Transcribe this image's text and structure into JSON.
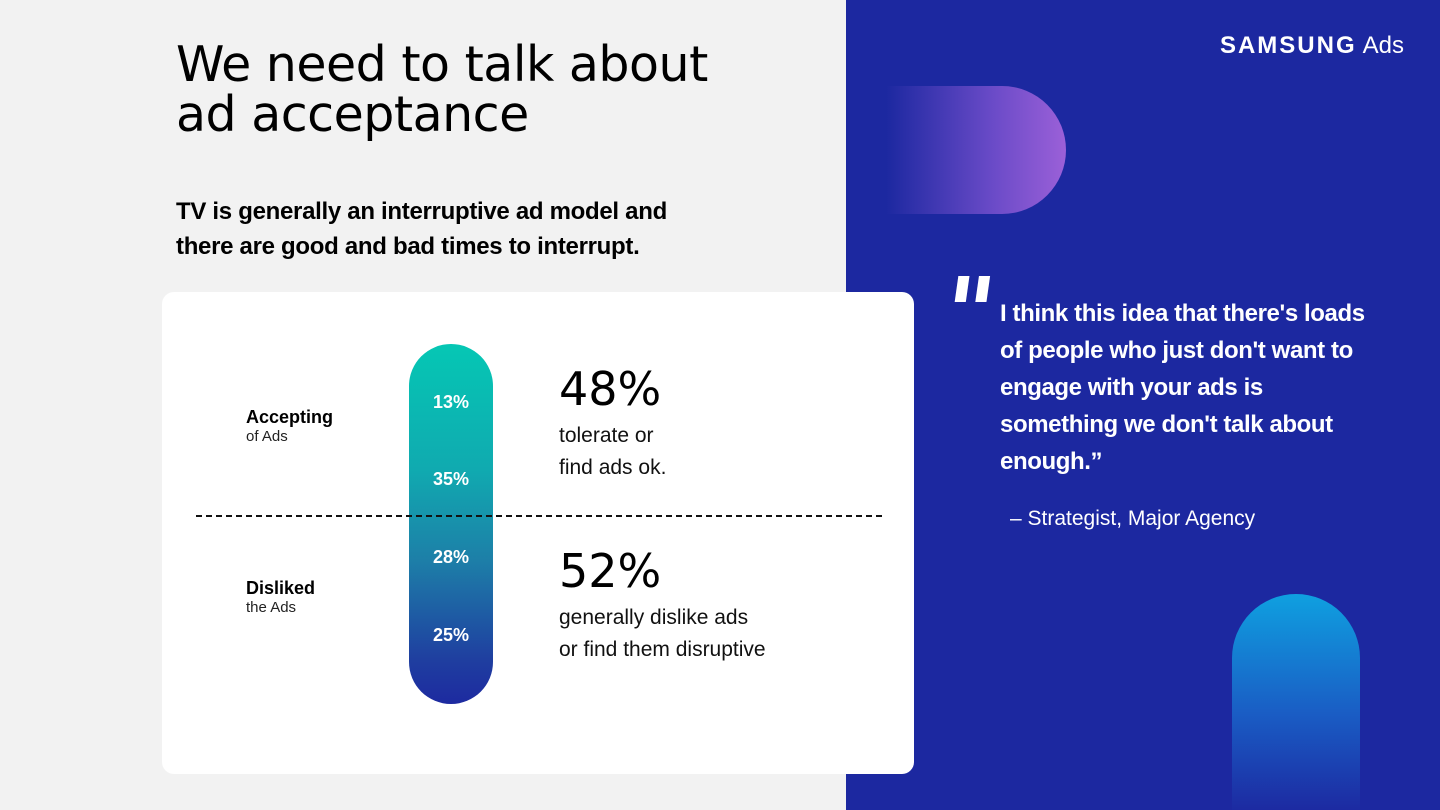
{
  "header": {
    "title_line1": "We need to talk about",
    "title_line2": "ad acceptance",
    "subtitle_line1": "TV is generally an interruptive ad model and",
    "subtitle_line2": "there are good and bad times to interrupt."
  },
  "card": {
    "accepting": {
      "label": "Accepting",
      "sublabel": "of Ads"
    },
    "disliked": {
      "label": "Disliked",
      "sublabel": "the Ads"
    },
    "segments": [
      "13%",
      "35%",
      "28%",
      "25%"
    ],
    "stat_accept": {
      "value": "48%",
      "line1": "tolerate or",
      "line2": "find ads ok."
    },
    "stat_dislike": {
      "value": "52%",
      "line1": "generally dislike ads",
      "line2": "or find them disruptive"
    }
  },
  "brand": {
    "name": "SAMSUNG",
    "product": "Ads"
  },
  "quote": {
    "mark": "\"",
    "text": "I think this idea that there's loads of people who just don't want to engage with your ads is something we don't talk about enough.”",
    "attribution": "– Strategist, Major Agency"
  },
  "colors": {
    "panel": "#1c28a0",
    "teal": "#05c7b4",
    "navy": "#1d2aa0"
  }
}
